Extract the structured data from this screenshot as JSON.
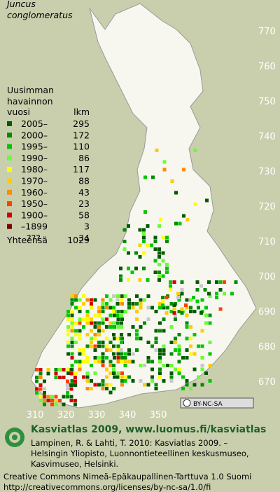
{
  "title": [
    "Juncus",
    "conglomeratus"
  ],
  "legend": {
    "heading": [
      "Uusimman",
      "havainnon",
      "vuosi"
    ],
    "count_heading": "lkm",
    "items": [
      {
        "label": "2005–",
        "count": 295,
        "color": "#005a00"
      },
      {
        "label": "2000–",
        "count": 172,
        "color": "#008c00"
      },
      {
        "label": "1995–",
        "count": 110,
        "color": "#00c800"
      },
      {
        "label": "1990–",
        "count": 86,
        "color": "#66ff33"
      },
      {
        "label": "1980–",
        "count": 117,
        "color": "#ffff00"
      },
      {
        "label": "1970–",
        "count": 88,
        "color": "#ffcc00"
      },
      {
        "label": "1960–",
        "count": 43,
        "color": "#ff8c00"
      },
      {
        "label": "1950–",
        "count": 23,
        "color": "#ff4000"
      },
      {
        "label": "1900–",
        "count": 58,
        "color": "#d20000"
      },
      {
        "label": "–1899",
        "count": 3,
        "color": "#800000"
      },
      {
        "label": "???",
        "count": 34,
        "color": "#c8c8c8"
      }
    ],
    "total_label": "Yhteensä",
    "total": 1029
  },
  "northing": [
    770,
    760,
    750,
    740,
    730,
    720,
    710,
    700,
    690,
    680,
    670
  ],
  "easting": [
    310,
    320,
    330,
    340,
    350
  ],
  "license_badge": "BY-NC-SA",
  "footer": {
    "brand": "Kasviatlas 2009, www.luomus.fi/kasviatlas",
    "citation": [
      "Lampinen, R. & Lahti, T. 2010: Kasviatlas 2009. –",
      "Helsingin Yliopisto, Luonnontieteellinen keskusmuseo,",
      "Kasvimuseo, Helsinki."
    ],
    "license": [
      "Creative Commons Nimeä-Epäkaupallinen-Tarttuva 1.0 Suomi",
      "http://creativecommons.org/licenses/by-nc-sa/1.0/fi"
    ]
  }
}
